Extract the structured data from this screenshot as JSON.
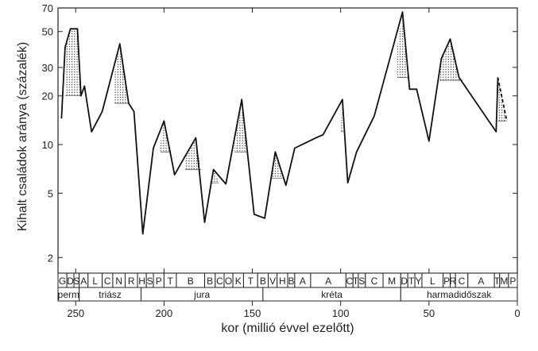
{
  "chart_data": {
    "type": "line",
    "title": "",
    "xlabel": "kor (millió évvel ezelőtt)",
    "ylabel": "Kihalt családok aránya (százalék)",
    "xlim": [
      260,
      0
    ],
    "ylim": [
      1.6,
      70
    ],
    "y_scale": "log",
    "x_ticks": [
      250,
      200,
      150,
      100,
      50,
      0
    ],
    "y_ticks": [
      2,
      5,
      10,
      20,
      30,
      50,
      70
    ],
    "series": [
      {
        "points": [
          [
            258,
            14.5
          ],
          [
            256,
            40
          ],
          [
            253,
            52
          ],
          [
            249,
            52
          ],
          [
            247,
            20
          ],
          [
            245,
            23
          ],
          [
            241,
            12
          ],
          [
            235,
            16
          ],
          [
            225,
            42
          ],
          [
            220,
            18
          ],
          [
            217,
            16
          ],
          [
            212,
            2.8
          ],
          [
            206,
            9.5
          ],
          [
            200,
            14
          ],
          [
            194,
            6.5
          ],
          [
            188,
            8.5
          ],
          [
            182,
            11
          ],
          [
            177,
            3.3
          ],
          [
            172,
            7
          ],
          [
            165,
            5.7
          ],
          [
            156,
            19
          ],
          [
            149,
            3.7
          ],
          [
            143,
            3.5
          ],
          [
            137,
            9
          ],
          [
            131,
            5.6
          ],
          [
            126,
            9.5
          ],
          [
            114,
            11
          ],
          [
            110,
            11.5
          ],
          [
            99,
            19
          ],
          [
            96,
            5.8
          ],
          [
            91,
            9
          ],
          [
            81,
            15
          ],
          [
            65,
            66
          ],
          [
            61,
            22
          ],
          [
            57,
            22
          ],
          [
            50,
            10.5
          ],
          [
            43,
            34
          ],
          [
            38,
            45
          ],
          [
            33,
            26
          ],
          [
            12,
            12
          ],
          [
            11,
            26
          ]
        ]
      }
    ],
    "dashed_segment": [
      [
        11,
        26
      ],
      [
        6,
        14
      ]
    ],
    "shaded_peaks": [
      {
        "x": [
          256,
          253,
          249,
          247
        ],
        "top": [
          40,
          52,
          52,
          20
        ],
        "base": 20
      },
      {
        "x": [
          228,
          225,
          220
        ],
        "top": [
          27,
          42,
          18
        ],
        "base": 18
      },
      {
        "x": [
          202,
          200,
          197
        ],
        "top": [
          10,
          14,
          9
        ],
        "base": 9
      },
      {
        "x": [
          188,
          182,
          179
        ],
        "top": [
          8.5,
          11,
          7
        ],
        "base": 7
      },
      {
        "x": [
          174,
          172,
          169
        ],
        "top": [
          5.8,
          7,
          6
        ],
        "base": 5.8
      },
      {
        "x": [
          160,
          156,
          153
        ],
        "top": [
          10,
          19,
          9
        ],
        "base": 9
      },
      {
        "x": [
          139,
          137,
          133
        ],
        "top": [
          6.5,
          9,
          6.2
        ],
        "base": 6.2
      },
      {
        "x": [
          100,
          99,
          98
        ],
        "top": [
          12,
          19,
          12
        ],
        "base": 12
      },
      {
        "x": [
          68,
          65,
          62
        ],
        "top": [
          40,
          66,
          26
        ],
        "base": 26
      },
      {
        "x": [
          44,
          43,
          38,
          33,
          31
        ],
        "top": [
          26,
          34,
          45,
          26,
          25
        ],
        "base": 25
      },
      {
        "x": [
          11,
          8,
          6
        ],
        "top": [
          26,
          19,
          14
        ],
        "base": 14
      }
    ],
    "stages": [
      {
        "label": "G",
        "start": 260,
        "end": 255
      },
      {
        "label": "D",
        "start": 255,
        "end": 251
      },
      {
        "label": "S",
        "start": 251,
        "end": 248
      },
      {
        "label": "A",
        "start": 248,
        "end": 243
      },
      {
        "label": "L",
        "start": 243,
        "end": 235
      },
      {
        "label": "C",
        "start": 235,
        "end": 229
      },
      {
        "label": "N",
        "start": 229,
        "end": 222
      },
      {
        "label": "R",
        "start": 222,
        "end": 215
      },
      {
        "label": "H",
        "start": 215,
        "end": 210
      },
      {
        "label": "S",
        "start": 210,
        "end": 206
      },
      {
        "label": "P",
        "start": 206,
        "end": 200
      },
      {
        "label": "T",
        "start": 200,
        "end": 193
      },
      {
        "label": "B",
        "start": 193,
        "end": 177
      },
      {
        "label": "B",
        "start": 177,
        "end": 171
      },
      {
        "label": "C",
        "start": 171,
        "end": 166
      },
      {
        "label": "O",
        "start": 166,
        "end": 161
      },
      {
        "label": "K",
        "start": 161,
        "end": 155
      },
      {
        "label": "T",
        "start": 155,
        "end": 147
      },
      {
        "label": "B",
        "start": 147,
        "end": 141
      },
      {
        "label": "V",
        "start": 141,
        "end": 136
      },
      {
        "label": "H",
        "start": 136,
        "end": 130
      },
      {
        "label": "B",
        "start": 130,
        "end": 126
      },
      {
        "label": "A",
        "start": 126,
        "end": 117
      },
      {
        "label": "A",
        "start": 117,
        "end": 97
      },
      {
        "label": "C",
        "start": 97,
        "end": 93
      },
      {
        "label": "T",
        "start": 93,
        "end": 90
      },
      {
        "label": "S",
        "start": 90,
        "end": 86
      },
      {
        "label": "C",
        "start": 86,
        "end": 76
      },
      {
        "label": "M",
        "start": 76,
        "end": 66
      },
      {
        "label": "D",
        "start": 66,
        "end": 62
      },
      {
        "label": "T",
        "start": 62,
        "end": 58
      },
      {
        "label": "Y",
        "start": 58,
        "end": 54
      },
      {
        "label": "L",
        "start": 54,
        "end": 42
      },
      {
        "label": "P",
        "start": 42,
        "end": 38
      },
      {
        "label": "R",
        "start": 38,
        "end": 35
      },
      {
        "label": "C",
        "start": 35,
        "end": 28
      },
      {
        "label": "A",
        "start": 28,
        "end": 13
      },
      {
        "label": "T",
        "start": 13,
        "end": 10
      },
      {
        "label": "M",
        "start": 10,
        "end": 5
      },
      {
        "label": "P",
        "start": 5,
        "end": 0
      }
    ],
    "periods": [
      {
        "label": "perm",
        "start": 260,
        "end": 248
      },
      {
        "label": "triász",
        "start": 248,
        "end": 213
      },
      {
        "label": "jura",
        "start": 213,
        "end": 144
      },
      {
        "label": "kréta",
        "start": 144,
        "end": 66
      },
      {
        "label": "harmadidőszak",
        "start": 66,
        "end": 0
      }
    ]
  }
}
